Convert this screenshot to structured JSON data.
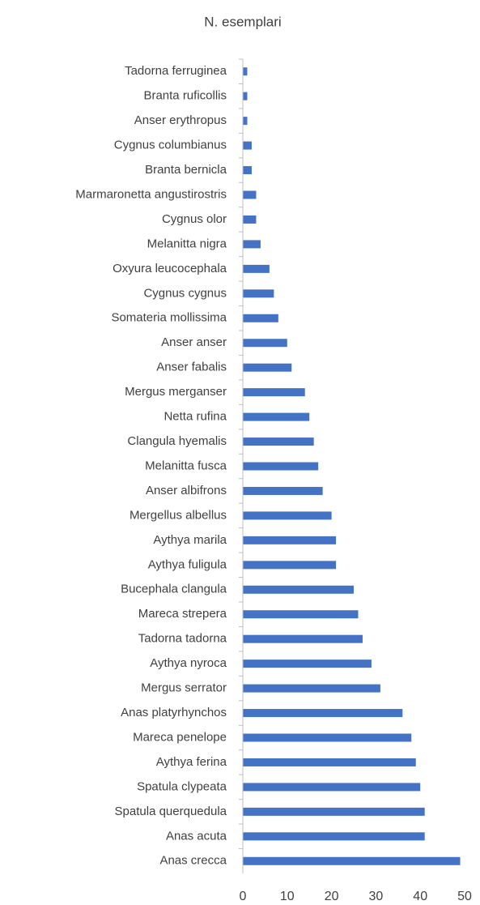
{
  "chart_data": {
    "type": "barh",
    "title": "N. esemplari",
    "categories": [
      "Tadorna ferruginea",
      "Branta ruficollis",
      "Anser erythropus",
      "Cygnus columbianus",
      "Branta bernicla",
      "Marmaronetta angustirostris",
      "Cygnus olor",
      "Melanitta nigra",
      "Oxyura leucocephala",
      "Cygnus cygnus",
      "Somateria mollissima",
      "Anser anser",
      "Anser fabalis",
      "Mergus merganser",
      "Netta rufina",
      "Clangula hyemalis",
      "Melanitta fusca",
      "Anser albifrons",
      "Mergellus albellus",
      "Aythya marila",
      "Aythya fuligula",
      "Bucephala clangula",
      "Mareca strepera",
      "Tadorna tadorna",
      "Aythya nyroca",
      "Mergus serrator",
      "Anas platyrhynchos",
      "Mareca penelope",
      "Aythya ferina",
      "Spatula clypeata",
      "Spatula querquedula",
      "Anas acuta",
      "Anas crecca"
    ],
    "values": [
      1,
      1,
      1,
      2,
      2,
      3,
      3,
      4,
      6,
      7,
      8,
      10,
      11,
      14,
      15,
      16,
      17,
      18,
      20,
      21,
      21,
      25,
      26,
      27,
      29,
      31,
      36,
      38,
      39,
      40,
      41,
      41,
      49
    ],
    "color": "#4472c4",
    "xlim": [
      0,
      50
    ],
    "xticks": [
      0,
      10,
      20,
      30,
      40,
      50
    ],
    "grid": false
  }
}
